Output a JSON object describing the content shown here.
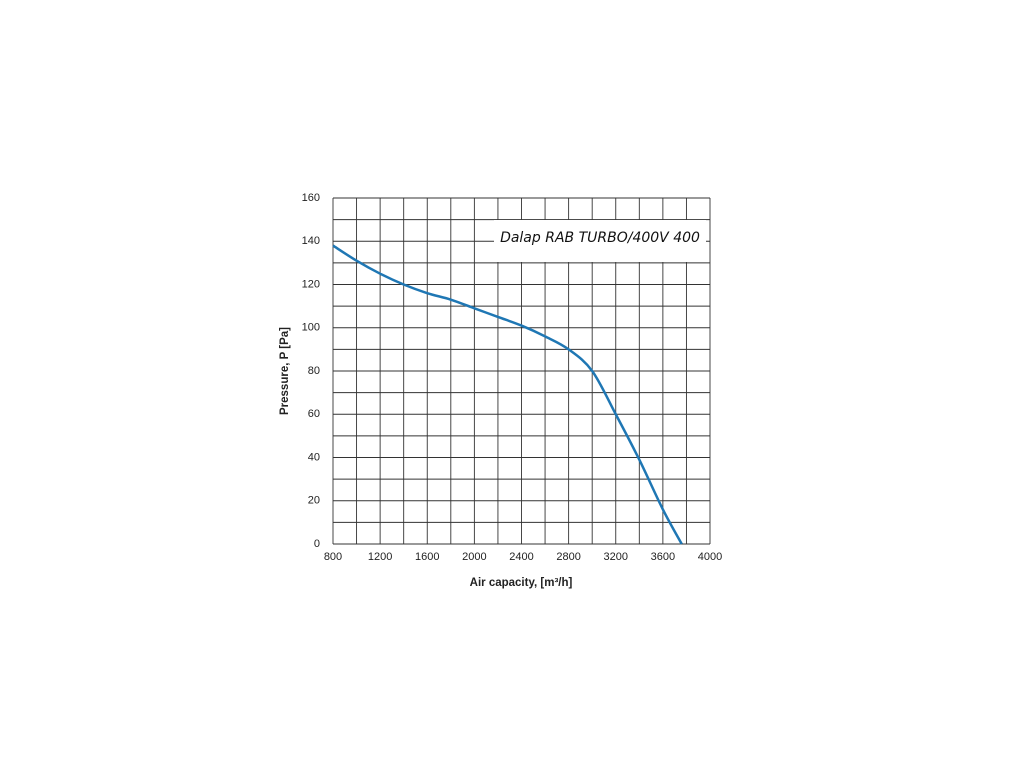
{
  "chart_data": {
    "type": "line",
    "title": "Dalap RAB TURBO/400V 400",
    "xlabel": "Air capacity, [m³/h]",
    "ylabel": "Pressure,   P [Pa]",
    "x": [
      800,
      1000,
      1200,
      1400,
      1600,
      1800,
      2000,
      2200,
      2400,
      2600,
      2800,
      3000,
      3200,
      3400,
      3600,
      3760
    ],
    "series": [
      {
        "color": "#1f77b4",
        "values": [
          138,
          131,
          125,
          120,
          116,
          113,
          109,
          105,
          101,
          96,
          90,
          80,
          60,
          39,
          16,
          0
        ]
      }
    ],
    "xlim": [
      800,
      4000
    ],
    "xticks": [
      800,
      1200,
      1600,
      2000,
      2400,
      2800,
      3200,
      3600,
      4000
    ],
    "ylim": [
      0,
      160
    ],
    "yticks": [
      0,
      20,
      40,
      60,
      80,
      100,
      120,
      140,
      160
    ],
    "grid": true
  }
}
